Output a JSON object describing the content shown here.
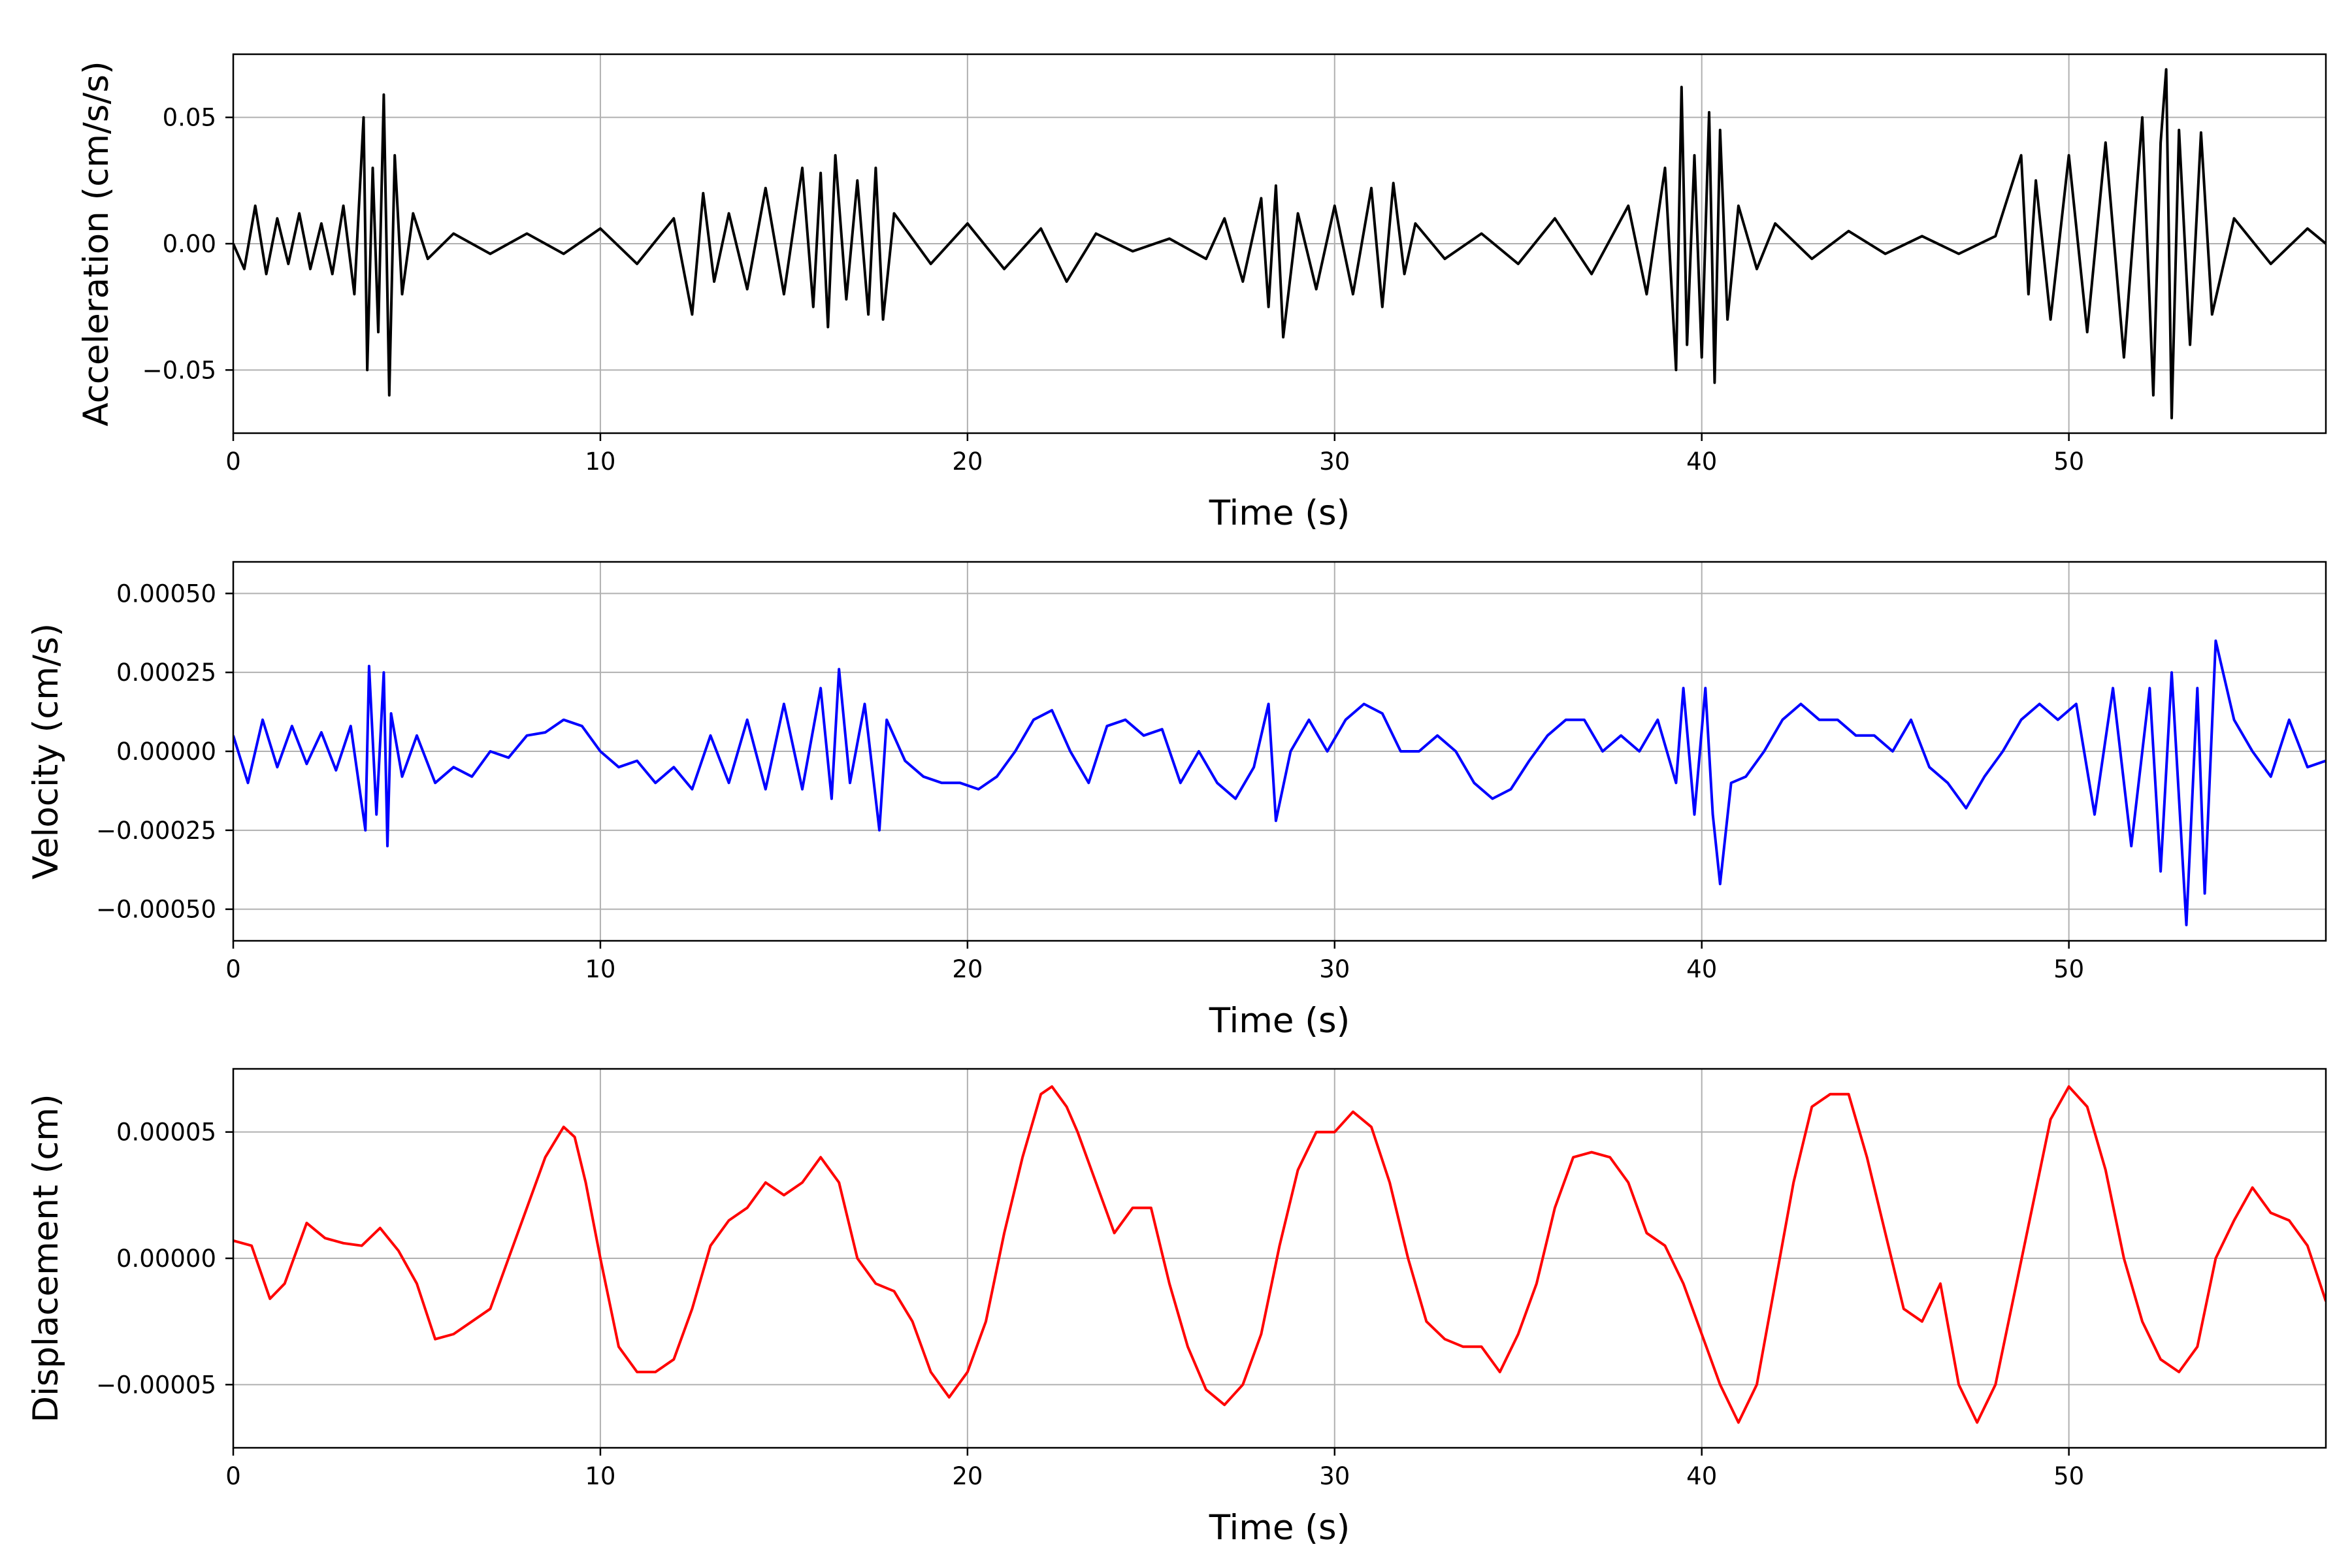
{
  "chart_data": [
    {
      "type": "line",
      "xlabel": "Time (s)",
      "ylabel": "Acceleration (cm/s/s)",
      "xlim": [
        0,
        57
      ],
      "ylim": [
        -0.075,
        0.075
      ],
      "xticks": [
        0,
        10,
        20,
        30,
        40,
        50
      ],
      "xtick_labels": [
        "0",
        "10",
        "20",
        "30",
        "40",
        "50"
      ],
      "yticks": [
        -0.05,
        0.0,
        0.05
      ],
      "ytick_labels": [
        "−0.05",
        "0.00",
        "0.05"
      ],
      "grid": true,
      "series": [
        {
          "color": "#000000",
          "x": [
            0.0,
            0.3,
            0.6,
            0.9,
            1.2,
            1.5,
            1.8,
            2.1,
            2.4,
            2.7,
            3.0,
            3.3,
            3.55,
            3.65,
            3.8,
            3.95,
            4.1,
            4.25,
            4.4,
            4.6,
            4.9,
            5.3,
            6.0,
            7.0,
            8.0,
            9.0,
            10.0,
            11.0,
            12.0,
            12.5,
            12.8,
            13.1,
            13.5,
            14.0,
            14.5,
            15.0,
            15.5,
            15.8,
            16.0,
            16.2,
            16.4,
            16.7,
            17.0,
            17.3,
            17.5,
            17.7,
            18.0,
            19.0,
            20.0,
            21.0,
            22.0,
            22.7,
            23.5,
            24.5,
            25.5,
            26.5,
            27.0,
            27.5,
            28.0,
            28.2,
            28.4,
            28.6,
            29.0,
            29.5,
            30.0,
            30.5,
            31.0,
            31.3,
            31.6,
            31.9,
            32.2,
            33.0,
            34.0,
            35.0,
            36.0,
            37.0,
            38.0,
            38.5,
            39.0,
            39.3,
            39.45,
            39.6,
            39.8,
            40.0,
            40.2,
            40.35,
            40.5,
            40.7,
            41.0,
            41.5,
            42.0,
            43.0,
            44.0,
            45.0,
            46.0,
            47.0,
            48.0,
            48.7,
            48.9,
            49.1,
            49.5,
            50.0,
            50.5,
            51.0,
            51.5,
            52.0,
            52.3,
            52.5,
            52.65,
            52.8,
            53.0,
            53.3,
            53.6,
            53.9,
            54.5,
            55.5,
            56.5,
            57.0
          ],
          "y": [
            0.0,
            -0.01,
            0.015,
            -0.012,
            0.01,
            -0.008,
            0.012,
            -0.01,
            0.008,
            -0.012,
            0.015,
            -0.02,
            0.05,
            -0.05,
            0.03,
            -0.035,
            0.059,
            -0.06,
            0.035,
            -0.02,
            0.012,
            -0.006,
            0.004,
            -0.004,
            0.004,
            -0.004,
            0.006,
            -0.008,
            0.01,
            -0.028,
            0.02,
            -0.015,
            0.012,
            -0.018,
            0.022,
            -0.02,
            0.03,
            -0.025,
            0.028,
            -0.033,
            0.035,
            -0.022,
            0.025,
            -0.028,
            0.03,
            -0.03,
            0.012,
            -0.008,
            0.008,
            -0.01,
            0.006,
            -0.015,
            0.004,
            -0.003,
            0.002,
            -0.006,
            0.01,
            -0.015,
            0.018,
            -0.025,
            0.023,
            -0.037,
            0.012,
            -0.018,
            0.015,
            -0.02,
            0.022,
            -0.025,
            0.024,
            -0.012,
            0.008,
            -0.006,
            0.004,
            -0.008,
            0.01,
            -0.012,
            0.015,
            -0.02,
            0.03,
            -0.05,
            0.062,
            -0.04,
            0.035,
            -0.045,
            0.052,
            -0.055,
            0.045,
            -0.03,
            0.015,
            -0.01,
            0.008,
            -0.006,
            0.005,
            -0.004,
            0.003,
            -0.004,
            0.003,
            0.035,
            -0.02,
            0.025,
            -0.03,
            0.035,
            -0.035,
            0.04,
            -0.045,
            0.05,
            -0.06,
            0.04,
            0.069,
            -0.069,
            0.045,
            -0.04,
            0.044,
            -0.028,
            0.01,
            -0.008,
            0.006,
            0.0
          ]
        }
      ]
    },
    {
      "type": "line",
      "xlabel": "Time (s)",
      "ylabel": "Velocity (cm/s)",
      "xlim": [
        0,
        57
      ],
      "ylim": [
        -0.0006,
        0.0006
      ],
      "xticks": [
        0,
        10,
        20,
        30,
        40,
        50
      ],
      "xtick_labels": [
        "0",
        "10",
        "20",
        "30",
        "40",
        "50"
      ],
      "yticks": [
        -0.0005,
        -0.00025,
        0.0,
        0.00025,
        0.0005
      ],
      "ytick_labels": [
        "−0.00050",
        "−0.00025",
        "0.00000",
        "0.00025",
        "0.00050"
      ],
      "grid": true,
      "series": [
        {
          "color": "#0000ff",
          "x": [
            0.0,
            0.4,
            0.8,
            1.2,
            1.6,
            2.0,
            2.4,
            2.8,
            3.2,
            3.6,
            3.7,
            3.9,
            4.1,
            4.2,
            4.3,
            4.6,
            5.0,
            5.5,
            6.0,
            6.5,
            7.0,
            7.5,
            8.0,
            8.5,
            9.0,
            9.5,
            10.0,
            10.5,
            11.0,
            11.5,
            12.0,
            12.5,
            13.0,
            13.5,
            14.0,
            14.5,
            15.0,
            15.5,
            16.0,
            16.3,
            16.5,
            16.8,
            17.2,
            17.6,
            17.8,
            18.3,
            18.8,
            19.3,
            19.8,
            20.3,
            20.8,
            21.3,
            21.8,
            22.3,
            22.8,
            23.3,
            23.8,
            24.3,
            24.8,
            25.3,
            25.8,
            26.3,
            26.8,
            27.3,
            27.8,
            28.2,
            28.4,
            28.8,
            29.3,
            29.8,
            30.3,
            30.8,
            31.3,
            31.8,
            32.3,
            32.8,
            33.3,
            33.8,
            34.3,
            34.8,
            35.3,
            35.8,
            36.3,
            36.8,
            37.3,
            37.8,
            38.3,
            38.8,
            39.3,
            39.5,
            39.8,
            40.1,
            40.3,
            40.5,
            40.8,
            41.2,
            41.7,
            42.2,
            42.7,
            43.2,
            43.7,
            44.2,
            44.7,
            45.2,
            45.7,
            46.2,
            46.7,
            47.2,
            47.7,
            48.2,
            48.7,
            49.2,
            49.7,
            50.2,
            50.7,
            51.2,
            51.7,
            52.2,
            52.5,
            52.8,
            53.2,
            53.5,
            53.7,
            54.0,
            54.5,
            55.0,
            55.5,
            56.0,
            56.5,
            57.0
          ],
          "y": [
            5e-05,
            -0.0001,
            0.0001,
            -5e-05,
            8e-05,
            -4e-05,
            6e-05,
            -6e-05,
            8e-05,
            -0.00025,
            0.00027,
            -0.0002,
            0.00025,
            -0.0003,
            0.00012,
            -8e-05,
            5e-05,
            -0.0001,
            -5e-05,
            -8e-05,
            0.0,
            -2e-05,
            5e-05,
            6e-05,
            0.0001,
            8e-05,
            0.0,
            -5e-05,
            -3e-05,
            -0.0001,
            -5e-05,
            -0.00012,
            5e-05,
            -0.0001,
            0.0001,
            -0.00012,
            0.00015,
            -0.00012,
            0.0002,
            -0.00015,
            0.00026,
            -0.0001,
            0.00015,
            -0.00025,
            0.0001,
            -3e-05,
            -8e-05,
            -0.0001,
            -0.0001,
            -0.00012,
            -8e-05,
            0.0,
            0.0001,
            0.00013,
            0.0,
            -0.0001,
            8e-05,
            0.0001,
            5e-05,
            7e-05,
            -0.0001,
            0.0,
            -0.0001,
            -0.00015,
            -5e-05,
            0.00015,
            -0.00022,
            0.0,
            0.0001,
            0.0,
            0.0001,
            0.00015,
            0.00012,
            0.0,
            0.0,
            5e-05,
            0.0,
            -0.0001,
            -0.00015,
            -0.00012,
            -3e-05,
            5e-05,
            0.0001,
            0.0001,
            0.0,
            5e-05,
            0.0,
            0.0001,
            -0.0001,
            0.0002,
            -0.0002,
            0.0002,
            -0.0002,
            -0.00042,
            -0.0001,
            -8e-05,
            0.0,
            0.0001,
            0.00015,
            0.0001,
            0.0001,
            5e-05,
            5e-05,
            0.0,
            0.0001,
            -5e-05,
            -0.0001,
            -0.00018,
            -8e-05,
            0.0,
            0.0001,
            0.00015,
            0.0001,
            0.00015,
            -0.0002,
            0.0002,
            -0.0003,
            0.0002,
            -0.00038,
            0.00025,
            -0.00055,
            0.0002,
            -0.00045,
            0.00035,
            0.0001,
            0.0,
            -8e-05,
            0.0001,
            -5e-05,
            -3e-05
          ]
        }
      ]
    },
    {
      "type": "line",
      "xlabel": "Time (s)",
      "ylabel": "Displacement (cm)",
      "xlim": [
        0,
        57
      ],
      "ylim": [
        -7.5e-05,
        7.5e-05
      ],
      "xticks": [
        0,
        10,
        20,
        30,
        40,
        50
      ],
      "xtick_labels": [
        "0",
        "10",
        "20",
        "30",
        "40",
        "50"
      ],
      "yticks": [
        -5e-05,
        0.0,
        5e-05
      ],
      "ytick_labels": [
        "−0.00005",
        "0.00000",
        "0.00005"
      ],
      "grid": true,
      "series": [
        {
          "color": "#ff0000",
          "x": [
            0.0,
            0.5,
            1.0,
            1.4,
            2.0,
            2.5,
            3.0,
            3.5,
            4.0,
            4.5,
            5.0,
            5.5,
            6.0,
            6.5,
            7.0,
            7.5,
            8.0,
            8.5,
            9.0,
            9.3,
            9.6,
            10.0,
            10.5,
            11.0,
            11.5,
            12.0,
            12.5,
            13.0,
            13.5,
            14.0,
            14.5,
            15.0,
            15.5,
            16.0,
            16.5,
            17.0,
            17.5,
            18.0,
            18.5,
            19.0,
            19.5,
            20.0,
            20.5,
            21.0,
            21.5,
            22.0,
            22.3,
            22.7,
            23.0,
            23.5,
            24.0,
            24.5,
            25.0,
            25.5,
            26.0,
            26.5,
            27.0,
            27.5,
            28.0,
            28.5,
            29.0,
            29.5,
            30.0,
            30.5,
            31.0,
            31.5,
            32.0,
            32.5,
            33.0,
            33.5,
            34.0,
            34.5,
            35.0,
            35.5,
            36.0,
            36.5,
            37.0,
            37.5,
            38.0,
            38.5,
            39.0,
            39.5,
            40.0,
            40.5,
            41.0,
            41.5,
            42.0,
            42.5,
            43.0,
            43.5,
            44.0,
            44.5,
            45.0,
            45.5,
            46.0,
            46.5,
            47.0,
            47.5,
            48.0,
            48.5,
            49.0,
            49.5,
            50.0,
            50.5,
            51.0,
            51.5,
            52.0,
            52.5,
            53.0,
            53.5,
            54.0,
            54.5,
            55.0,
            55.5,
            56.0,
            56.5,
            57.0
          ],
          "y": [
            7e-06,
            5e-06,
            -1.6e-05,
            -1e-05,
            1.4e-05,
            8e-06,
            6e-06,
            5e-06,
            1.2e-05,
            3e-06,
            -1e-05,
            -3.2e-05,
            -3e-05,
            -2.5e-05,
            -2e-05,
            0.0,
            2e-05,
            4e-05,
            5.2e-05,
            4.8e-05,
            3e-05,
            0.0,
            -3.5e-05,
            -4.5e-05,
            -4.5e-05,
            -4e-05,
            -2e-05,
            5e-06,
            1.5e-05,
            2e-05,
            3e-05,
            2.5e-05,
            3e-05,
            4e-05,
            3e-05,
            0.0,
            -1e-05,
            -1.3e-05,
            -2.5e-05,
            -4.5e-05,
            -5.5e-05,
            -4.5e-05,
            -2.5e-05,
            1e-05,
            4e-05,
            6.5e-05,
            6.8e-05,
            6e-05,
            5e-05,
            3e-05,
            1e-05,
            2e-05,
            2e-05,
            -1e-05,
            -3.5e-05,
            -5.2e-05,
            -5.8e-05,
            -5e-05,
            -3e-05,
            5e-06,
            3.5e-05,
            5e-05,
            5e-05,
            5.8e-05,
            5.2e-05,
            3e-05,
            0.0,
            -2.5e-05,
            -3.2e-05,
            -3.5e-05,
            -3.5e-05,
            -4.5e-05,
            -3e-05,
            -1e-05,
            2e-05,
            4e-05,
            4.2e-05,
            4e-05,
            3e-05,
            1e-05,
            5e-06,
            -1e-05,
            -3e-05,
            -5e-05,
            -6.5e-05,
            -5e-05,
            -1e-05,
            3e-05,
            6e-05,
            6.5e-05,
            6.5e-05,
            4e-05,
            1e-05,
            -2e-05,
            -2.5e-05,
            -1e-05,
            -5e-05,
            -6.5e-05,
            -5e-05,
            -1.5e-05,
            2e-05,
            5.5e-05,
            6.8e-05,
            6e-05,
            3.5e-05,
            0.0,
            -2.5e-05,
            -4e-05,
            -4.5e-05,
            -3.5e-05,
            0.0,
            1.5e-05,
            2.8e-05,
            1.8e-05,
            1.5e-05,
            5e-06,
            -1.7e-05
          ]
        }
      ]
    }
  ]
}
